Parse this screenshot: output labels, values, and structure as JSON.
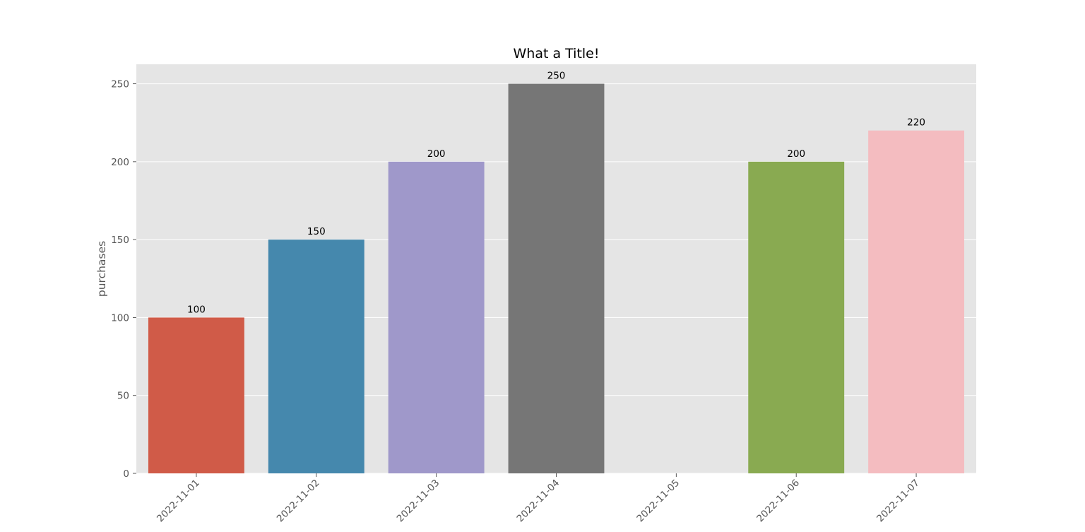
{
  "chart_data": {
    "type": "bar",
    "title": "What a Title!",
    "xlabel": "",
    "ylabel": "purchases",
    "categories": [
      "2022-11-01",
      "2022-11-02",
      "2022-11-03",
      "2022-11-04",
      "2022-11-05",
      "2022-11-06",
      "2022-11-07"
    ],
    "values": [
      100,
      150,
      200,
      250,
      0,
      200,
      220
    ],
    "data_labels": [
      "100",
      "150",
      "200",
      "250",
      "",
      "200",
      "220"
    ],
    "bar_colors": [
      "#D05B48",
      "#4588AD",
      "#9F98CA",
      "#767676",
      "#E5E5E5",
      "#89AA51",
      "#F4BCC0"
    ],
    "ylim": [
      0,
      262.5
    ],
    "yticks": [
      0,
      50,
      100,
      150,
      200,
      250
    ],
    "ytick_labels": [
      "0",
      "50",
      "100",
      "150",
      "200",
      "250"
    ],
    "grid": true,
    "xtick_rotation": 45,
    "background_color": "#E5E5E5",
    "grid_color": "#FFFFFF"
  }
}
